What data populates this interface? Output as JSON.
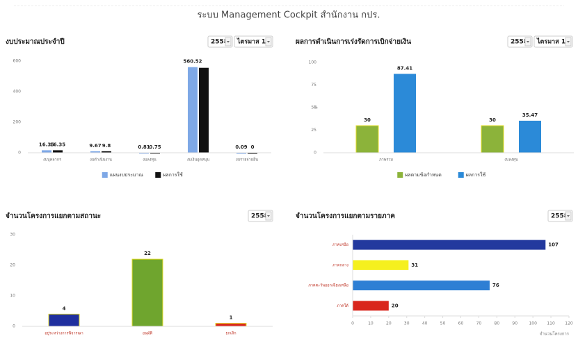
{
  "header": {
    "title": "ระบบ Management Cockpit สำนักงาน กปร."
  },
  "chart_data": [
    {
      "type": "bar",
      "title": "งบประมาณประจำปี",
      "controls": [
        "2558",
        "ไตรมาส 1"
      ],
      "categories": [
        "งบบุคลากร",
        "งบดำเนินงาน",
        "งบลงทุน",
        "งบเงินอุดหนุน",
        "งบรายจ่ายอื่น"
      ],
      "series": [
        {
          "name": "แผนงบประมาณ",
          "color": "#7ea8e6",
          "values": [
            16.35,
            9.67,
            0.81,
            560.52,
            0.09
          ]
        },
        {
          "name": "ผลการใช้",
          "color": "#111111",
          "values": [
            16.35,
            9.8,
            0.75,
            556,
            0
          ],
          "value_labels": [
            "16.35",
            "9.8",
            "0.75",
            null,
            "0"
          ]
        }
      ],
      "ylim": [
        0,
        600
      ],
      "yticks": [
        0,
        200,
        400,
        600
      ],
      "grid": false,
      "legend": "bottom"
    },
    {
      "type": "bar",
      "title": "ผลการดำเนินการเร่งรัดการเบิกจ่ายเงิน",
      "controls": [
        "2558",
        "ไตรมาส 1"
      ],
      "y_label": "%",
      "categories": [
        "ภาพรวม",
        "งบลงทุน"
      ],
      "series": [
        {
          "name": "ผลตามข้อกำหนด",
          "color": "#8cb33a",
          "border": "#e4dc2a",
          "values": [
            30,
            30
          ]
        },
        {
          "name": "ผลการใช้",
          "color": "#2b8ad8",
          "values": [
            87.41,
            35.47
          ]
        }
      ],
      "ylim": [
        0,
        100
      ],
      "yticks": [
        0,
        25,
        50,
        75,
        100
      ],
      "grid": false,
      "legend": "bottom"
    },
    {
      "type": "bar",
      "title": "จำนวนโครงการแยกตามสถานะ",
      "controls": [
        "2558"
      ],
      "categories": [
        "อยู่ระหว่างการพิจารณา",
        "อนุมัติ",
        "ยกเลิก"
      ],
      "series": [
        {
          "colors": [
            "#1f2f9e",
            "#6fa52e",
            "#d9261c"
          ],
          "border": "#e4dc2a",
          "values": [
            4,
            22,
            1
          ]
        }
      ],
      "ylim": [
        0,
        30
      ],
      "yticks": [
        0,
        10,
        20,
        30
      ],
      "grid": false
    },
    {
      "type": "barh",
      "title": "จำนวนโครงการแยกตามรายภาค",
      "controls": [
        "2558"
      ],
      "x_label": "จำนวนโครงการ",
      "categories": [
        "ภาคเหนือ",
        "ภาคกลาง",
        "ภาคตะวันออกเฉียงเหนือ",
        "ภาคใต้"
      ],
      "series": [
        {
          "colors": [
            "#23399e",
            "#f5f01e",
            "#2e7fd4",
            "#d9261c"
          ],
          "values": [
            107,
            31,
            76,
            20
          ]
        }
      ],
      "xlim": [
        0,
        120
      ],
      "xticks": [
        0,
        10,
        20,
        30,
        40,
        50,
        60,
        70,
        80,
        90,
        100,
        110,
        120
      ],
      "grid": false
    }
  ]
}
